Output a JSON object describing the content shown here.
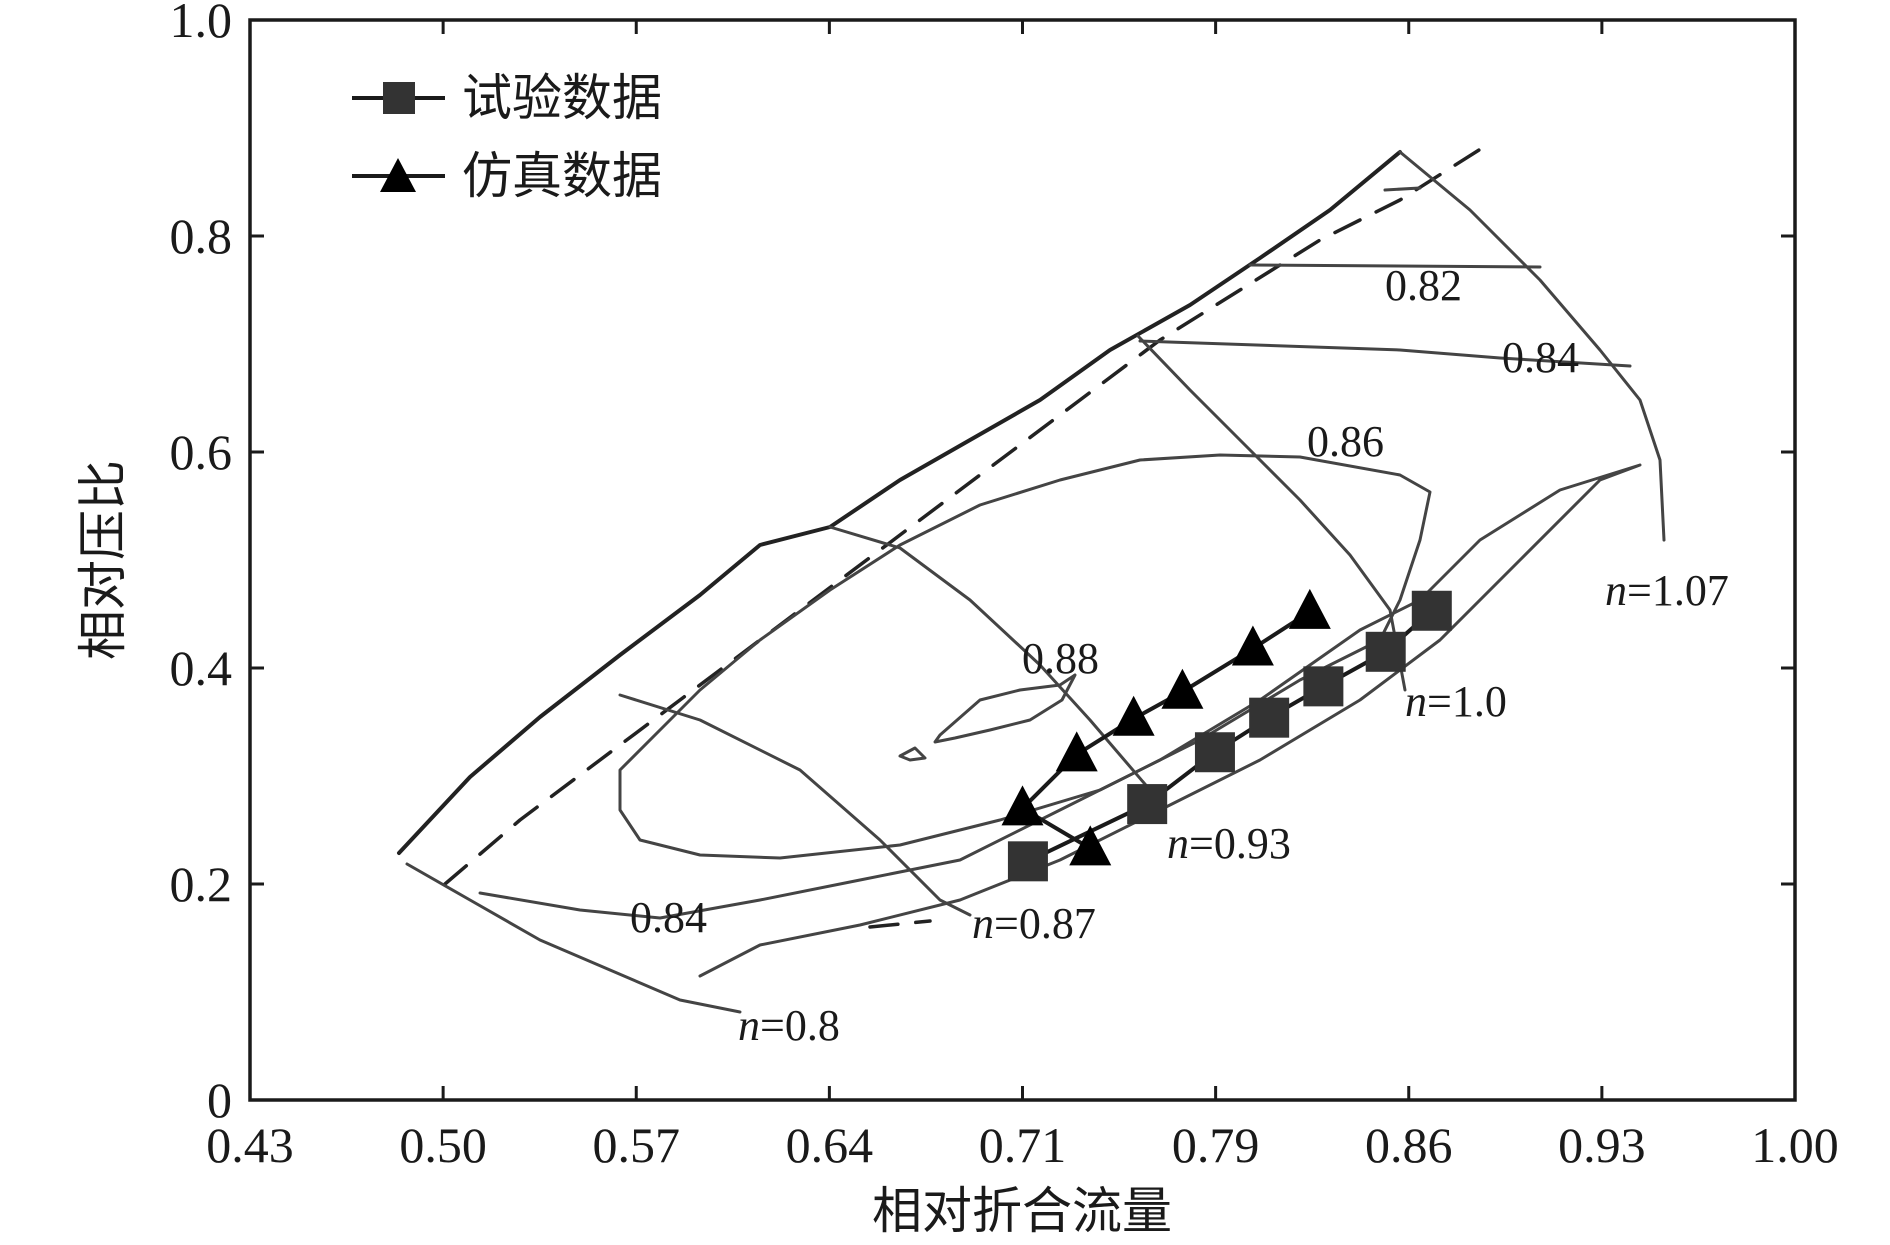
{
  "chart_data": {
    "type": "line",
    "xlabel": "相对折合流量",
    "ylabel": "相对压比",
    "xlim": [
      0.43,
      1.0
    ],
    "ylim": [
      0,
      1.0
    ],
    "x_ticks": [
      "0.43",
      "0.50",
      "0.57",
      "0.64",
      "0.71",
      "0.79",
      "0.86",
      "0.93",
      "1.00"
    ],
    "y_ticks": [
      "0",
      "0.2",
      "0.4",
      "0.6",
      "0.8",
      "1.0"
    ],
    "legend_position": "top-left",
    "grid": false,
    "series": [
      {
        "name": "试验数据",
        "marker": "square",
        "color": "#333333",
        "points": [
          [
            0.717,
            0.221
          ],
          [
            0.761,
            0.274
          ],
          [
            0.786,
            0.322
          ],
          [
            0.806,
            0.354
          ],
          [
            0.826,
            0.383
          ],
          [
            0.849,
            0.415
          ],
          [
            0.866,
            0.453
          ]
        ]
      },
      {
        "name": "仿真数据",
        "marker": "triangle",
        "color": "#000000",
        "points": [
          [
            0.74,
            0.233
          ],
          [
            0.715,
            0.27
          ],
          [
            0.735,
            0.32
          ],
          [
            0.756,
            0.353
          ],
          [
            0.774,
            0.378
          ],
          [
            0.8,
            0.418
          ],
          [
            0.821,
            0.452
          ]
        ]
      }
    ],
    "annotations": {
      "eff_082": "0.82",
      "eff_084_upper": "0.84",
      "eff_086": "0.86",
      "eff_088": "0.88",
      "eff_084_lower": "0.84",
      "n_prefix": "n",
      "n_107": "=1.07",
      "n_10": "=1.0",
      "n_093": "=0.93",
      "n_087": "=0.87",
      "n_08": "=0.8"
    }
  }
}
